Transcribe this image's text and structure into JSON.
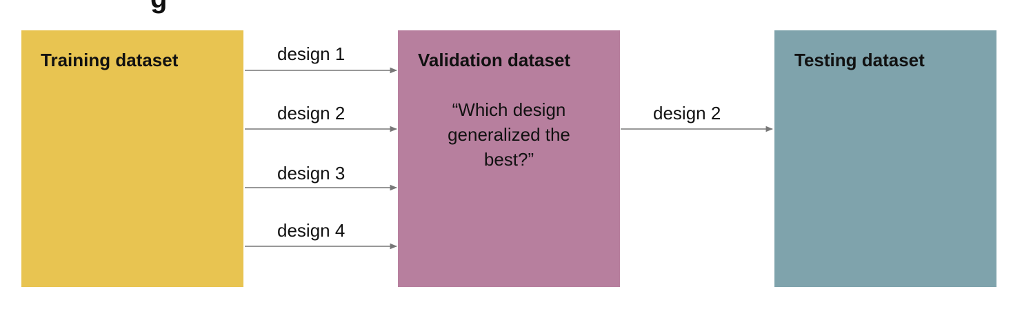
{
  "colors": {
    "training": "#E8C451",
    "validation": "#B77F9E",
    "testing": "#7FA3AC",
    "arrow": "#777777"
  },
  "boxes": {
    "training": {
      "title": "Training dataset"
    },
    "validation": {
      "title": "Validation dataset",
      "question_lines": [
        "“Which design",
        "generalized the",
        "best?”"
      ]
    },
    "testing": {
      "title": "Testing dataset"
    }
  },
  "arrows": {
    "training_to_validation": [
      {
        "label": "design 1"
      },
      {
        "label": "design 2"
      },
      {
        "label": "design 3"
      },
      {
        "label": "design 4"
      }
    ],
    "validation_to_testing": {
      "label": "design 2"
    }
  }
}
